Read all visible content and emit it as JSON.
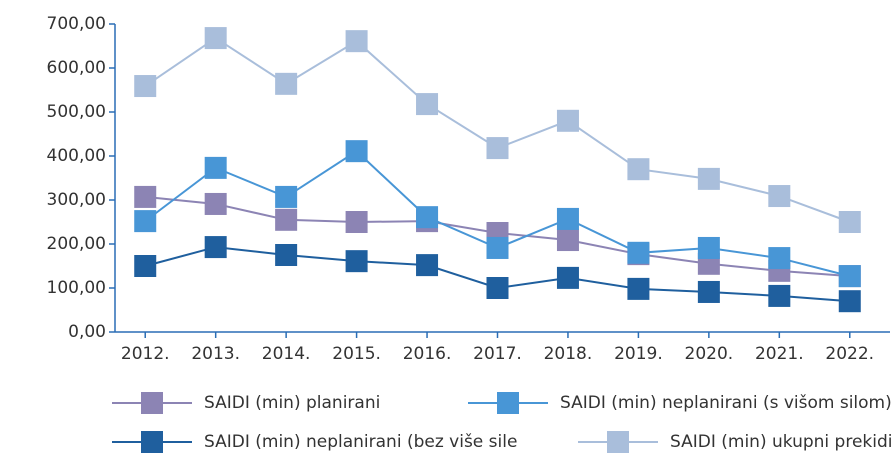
{
  "chart_data": {
    "type": "line",
    "categories": [
      "2012.",
      "2013.",
      "2014.",
      "2015.",
      "2016.",
      "2017.",
      "2018.",
      "2019.",
      "2020.",
      "2021.",
      "2022."
    ],
    "series": [
      {
        "name": "SAIDI (min) planirani",
        "color": "#8c84b4",
        "values": [
          307,
          291,
          255,
          250,
          252,
          225,
          209,
          177,
          155,
          139,
          127
        ]
      },
      {
        "name": "SAIDI (min) neplanirani (s višom silom)",
        "color": "#4896d6",
        "values": [
          252,
          373,
          307,
          411,
          261,
          191,
          257,
          180,
          191,
          168,
          127
        ]
      },
      {
        "name": "SAIDI (min) neplanirani (bez više sile",
        "color": "#1f5f9e",
        "values": [
          150,
          193,
          175,
          161,
          152,
          100,
          123,
          98,
          91,
          82,
          70
        ]
      },
      {
        "name": "SAIDI (min) ukupni prekidi",
        "color": "#a9bedb",
        "values": [
          559,
          668,
          564,
          661,
          518,
          418,
          480,
          370,
          348,
          309,
          250
        ]
      }
    ],
    "ylim": [
      0,
      700
    ],
    "yticks": [
      {
        "value": 0,
        "label": "0,00"
      },
      {
        "value": 100,
        "label": "100,00"
      },
      {
        "value": 200,
        "label": "200,00"
      },
      {
        "value": 300,
        "label": "300,00"
      },
      {
        "value": 400,
        "label": "400,00"
      },
      {
        "value": 500,
        "label": "500,00"
      },
      {
        "value": 600,
        "label": "600,00"
      },
      {
        "value": 700,
        "label": "700,00"
      }
    ],
    "legend": "bottom"
  }
}
